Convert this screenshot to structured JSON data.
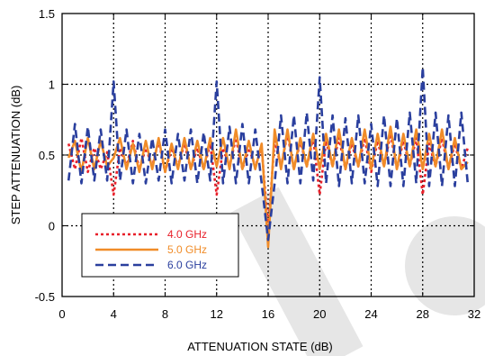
{
  "chart_data": {
    "type": "line",
    "xlabel": "ATTENUATION STATE (dB)",
    "ylabel": "STEP ATTENUATION (dB)",
    "xlim": [
      0,
      32
    ],
    "ylim": [
      -0.5,
      1.5
    ],
    "x_ticks": [
      "0",
      "4",
      "8",
      "12",
      "16",
      "20",
      "24",
      "28",
      "32"
    ],
    "y_ticks": [
      "-0.5",
      "0",
      "0.5",
      "1",
      "1.5"
    ],
    "grid": true,
    "legend_position": "lower-left",
    "x": [
      0.5,
      1,
      1.5,
      2,
      2.5,
      3,
      3.5,
      4,
      4.5,
      5,
      5.5,
      6,
      6.5,
      7,
      7.5,
      8,
      8.5,
      9,
      9.5,
      10,
      10.5,
      11,
      11.5,
      12,
      12.5,
      13,
      13.5,
      14,
      14.5,
      15,
      15.5,
      16,
      16.5,
      17,
      17.5,
      18,
      18.5,
      19,
      19.5,
      20,
      20.5,
      21,
      21.5,
      22,
      22.5,
      23,
      23.5,
      24,
      24.5,
      25,
      25.5,
      26,
      26.5,
      27,
      27.5,
      28,
      28.5,
      29,
      29.5,
      30,
      30.5,
      31,
      31.5
    ],
    "series": [
      {
        "name": "4.0 GHz",
        "color": "#e8202a",
        "dash": "dotted",
        "values": [
          0.58,
          0.4,
          0.62,
          0.38,
          0.55,
          0.4,
          0.52,
          0.22,
          0.55,
          0.42,
          0.6,
          0.4,
          0.55,
          0.42,
          0.6,
          0.38,
          0.55,
          0.42,
          0.58,
          0.4,
          0.55,
          0.4,
          0.58,
          0.22,
          0.55,
          0.42,
          0.62,
          0.4,
          0.55,
          0.42,
          0.55,
          -0.02,
          0.6,
          0.42,
          0.65,
          0.4,
          0.6,
          0.42,
          0.62,
          0.22,
          0.6,
          0.42,
          0.62,
          0.4,
          0.58,
          0.42,
          0.62,
          0.38,
          0.6,
          0.42,
          0.65,
          0.4,
          0.6,
          0.42,
          0.62,
          0.22,
          0.58,
          0.42,
          0.62,
          0.4,
          0.58,
          0.4,
          0.55
        ]
      },
      {
        "name": "5.0 GHz",
        "color": "#f08c28",
        "dash": "solid",
        "values": [
          0.48,
          0.6,
          0.38,
          0.62,
          0.4,
          0.6,
          0.42,
          0.48,
          0.62,
          0.4,
          0.58,
          0.38,
          0.6,
          0.4,
          0.62,
          0.38,
          0.58,
          0.4,
          0.62,
          0.4,
          0.6,
          0.4,
          0.62,
          0.42,
          0.62,
          0.4,
          0.68,
          0.4,
          0.6,
          0.4,
          0.58,
          -0.15,
          0.68,
          0.4,
          0.68,
          0.4,
          0.62,
          0.42,
          0.65,
          0.4,
          0.65,
          0.42,
          0.68,
          0.4,
          0.62,
          0.42,
          0.68,
          0.4,
          0.65,
          0.42,
          0.7,
          0.4,
          0.65,
          0.42,
          0.68,
          0.4,
          0.65,
          0.42,
          0.68,
          0.4,
          0.62,
          0.4,
          0.45
        ]
      },
      {
        "name": "6.0 GHz",
        "color": "#2a3f9e",
        "dash": "dashed",
        "values": [
          0.32,
          0.72,
          0.3,
          0.7,
          0.32,
          0.68,
          0.32,
          1.02,
          0.32,
          0.68,
          0.3,
          0.65,
          0.3,
          0.62,
          0.32,
          0.68,
          0.3,
          0.65,
          0.32,
          0.68,
          0.3,
          0.66,
          0.32,
          1.02,
          0.3,
          0.7,
          0.3,
          0.72,
          0.3,
          0.68,
          0.3,
          -0.1,
          0.3,
          0.78,
          0.3,
          0.78,
          0.3,
          0.8,
          0.32,
          1.05,
          0.3,
          0.78,
          0.28,
          0.76,
          0.3,
          0.78,
          0.3,
          0.72,
          0.28,
          0.78,
          0.28,
          0.76,
          0.28,
          0.8,
          0.3,
          1.12,
          0.28,
          0.8,
          0.28,
          0.78,
          0.28,
          0.8,
          0.3
        ]
      }
    ]
  }
}
